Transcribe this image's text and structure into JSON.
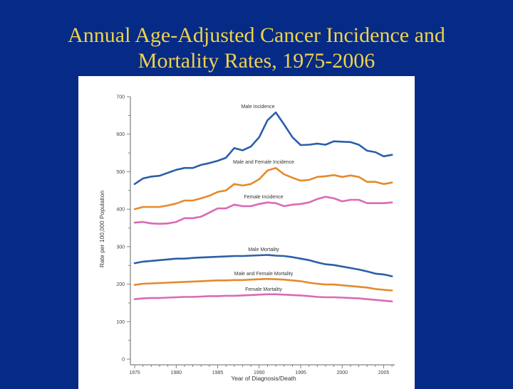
{
  "slide": {
    "title_line1": "Annual Age-Adjusted Cancer Incidence and",
    "title_line2": "Mortality Rates, 1975-2006",
    "background_color": "#062b86",
    "title_color": "#f0d34a"
  },
  "chart_data": {
    "type": "line",
    "title": "Annual Age-Adjusted Cancer Incidence and Mortality Rates, 1975-2006",
    "xlabel": "Year of Diagnosis/Death",
    "ylabel": "Rate per 100,000 Population",
    "xlim": [
      1975,
      2006
    ],
    "ylim": [
      0,
      700
    ],
    "x_ticks": [
      1975,
      1980,
      1985,
      1990,
      1995,
      2000,
      2005
    ],
    "y_ticks": [
      0,
      100,
      200,
      300,
      400,
      500,
      600,
      700
    ],
    "grid": false,
    "legend": "inline-labels",
    "x": [
      1975,
      1976,
      1977,
      1978,
      1979,
      1980,
      1981,
      1982,
      1983,
      1984,
      1985,
      1986,
      1987,
      1988,
      1989,
      1990,
      1991,
      1992,
      1993,
      1994,
      1995,
      1996,
      1997,
      1998,
      1999,
      2000,
      2001,
      2002,
      2003,
      2004,
      2005,
      2006
    ],
    "series": [
      {
        "name": "Male Incidence",
        "color": "#2b5fa8",
        "values": [
          467,
          482,
          487,
          489,
          497,
          505,
          510,
          510,
          518,
          523,
          529,
          537,
          563,
          557,
          567,
          592,
          637,
          658,
          626,
          592,
          571,
          572,
          575,
          572,
          581,
          580,
          579,
          572,
          556,
          552,
          541,
          545
        ]
      },
      {
        "name": "Male and Female Incidence",
        "color": "#e58a2b",
        "values": [
          400,
          406,
          406,
          406,
          410,
          415,
          423,
          423,
          429,
          436,
          446,
          450,
          467,
          463,
          467,
          480,
          503,
          510,
          493,
          484,
          476,
          478,
          486,
          488,
          491,
          486,
          490,
          486,
          473,
          473,
          467,
          471
        ]
      },
      {
        "name": "Female Incidence",
        "color": "#d96bb3",
        "values": [
          364,
          366,
          362,
          361,
          362,
          366,
          376,
          376,
          380,
          391,
          402,
          402,
          412,
          408,
          408,
          414,
          418,
          416,
          408,
          412,
          414,
          418,
          427,
          433,
          429,
          421,
          425,
          425,
          416,
          416,
          416,
          418
        ]
      },
      {
        "name": "Male Mortality",
        "color": "#2b5fa8",
        "values": [
          256,
          260,
          262,
          264,
          266,
          268,
          268,
          270,
          271,
          272,
          273,
          274,
          275,
          275,
          276,
          277,
          278,
          276,
          275,
          272,
          268,
          264,
          258,
          253,
          251,
          247,
          243,
          239,
          234,
          228,
          226,
          221
        ]
      },
      {
        "name": "Male and Female Mortality",
        "color": "#e58a2b",
        "values": [
          198,
          201,
          202,
          203,
          204,
          205,
          206,
          207,
          208,
          209,
          210,
          210,
          211,
          211,
          212,
          213,
          214,
          213,
          212,
          210,
          208,
          204,
          201,
          199,
          199,
          197,
          195,
          193,
          191,
          187,
          185,
          183
        ]
      },
      {
        "name": "Female Mortality",
        "color": "#d96bb3",
        "values": [
          160,
          162,
          163,
          163,
          164,
          165,
          166,
          166,
          167,
          168,
          168,
          169,
          169,
          170,
          171,
          172,
          173,
          173,
          172,
          171,
          170,
          168,
          166,
          165,
          165,
          164,
          163,
          162,
          160,
          158,
          156,
          154
        ]
      }
    ]
  }
}
